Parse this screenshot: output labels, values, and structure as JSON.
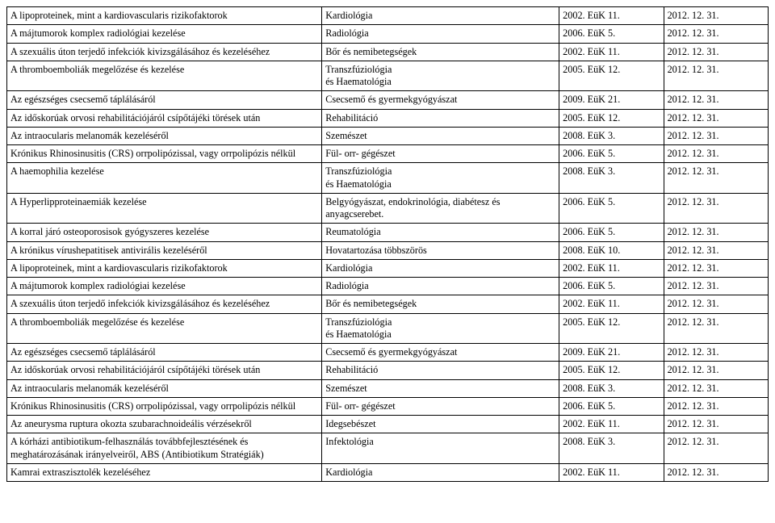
{
  "table": {
    "rows": [
      {
        "c1": "A lipoproteinek, mint a kardiovascularis rizikofaktorok",
        "c2": "Kardiológia",
        "c3": "2002. EüK 11.",
        "c4": "2012. 12. 31."
      },
      {
        "c1": "A májtumorok komplex radiológiai kezelése",
        "c2": "Radiológia",
        "c3": "2006. EüK 5.",
        "c4": "2012. 12. 31."
      },
      {
        "c1": "A szexuális úton terjedő infekciók kivizsgálásához és kezeléséhez",
        "c2": "Bőr és nemibetegségek",
        "c3": "2002. EüK 11.",
        "c4": "2012. 12. 31."
      },
      {
        "c1": "A thromboemboliák megelőzése és kezelése",
        "c2": "Transzfúziológia\nés Haematológia",
        "c3": "2005. EüK 12.",
        "c4": "2012. 12. 31."
      },
      {
        "c1": "Az egészséges csecsemő táplálásáról",
        "c2": "Csecsemő és gyermekgyógyászat",
        "c3": "2009. EüK 21.",
        "c4": "2012. 12. 31."
      },
      {
        "c1": "Az időskorúak orvosi rehabilitációjáról csípőtájéki törések után",
        "c2": "Rehabilitáció",
        "c3": "2005. EüK 12.",
        "c4": "2012. 12. 31."
      },
      {
        "c1": "Az intraocularis melanomák kezeléséről",
        "c2": "Szemészet",
        "c3": "2008. EüK 3.",
        "c4": "2012. 12. 31."
      },
      {
        "c1": "Krónikus Rhinosinusitis (CRS) orrpolipózissal, vagy orrpolipózis nélkül",
        "c2": "Fül- orr- gégészet",
        "c3": "2006. EüK 5.",
        "c4": "2012. 12. 31."
      },
      {
        "c1": "A haemophilia kezelése",
        "c2": "Transzfúziológia\nés Haematológia",
        "c3": "2008. EüK 3.",
        "c4": "2012. 12. 31."
      },
      {
        "c1": "A Hyperlipproteinaemiák kezelése",
        "c2": "Belgyógyászat, endokrinológia, diabétesz és anyagcserebet.",
        "c3": "2006. EüK 5.",
        "c4": "2012. 12. 31."
      },
      {
        "c1": "A korral járó osteoporosisok gyógyszeres kezelése",
        "c2": "Reumatológia",
        "c3": "2006. EüK 5.",
        "c4": "2012. 12. 31."
      },
      {
        "c1": "A krónikus vírushepatitisek antivirális kezeléséről",
        "c2": "Hovatartozása többszörös",
        "c3": "2008. EüK 10.",
        "c4": "2012. 12. 31."
      },
      {
        "c1": "A lipoproteinek, mint a kardiovascularis rizikofaktorok",
        "c2": "Kardiológia",
        "c3": "2002. EüK 11.",
        "c4": "2012. 12. 31."
      },
      {
        "c1": "A májtumorok komplex radiológiai kezelése",
        "c2": "Radiológia",
        "c3": "2006. EüK 5.",
        "c4": "2012. 12. 31."
      },
      {
        "c1": "A szexuális úton terjedő infekciók kivizsgálásához és kezeléséhez",
        "c2": "Bőr és nemibetegségek",
        "c3": "2002. EüK 11.",
        "c4": "2012. 12. 31."
      },
      {
        "c1": "A thromboemboliák megelőzése és kezelése",
        "c2": "Transzfúziológia\nés Haematológia",
        "c3": "2005. EüK 12.",
        "c4": "2012. 12. 31."
      },
      {
        "c1": "Az egészséges csecsemő táplálásáról",
        "c2": "Csecsemő és gyermekgyógyászat",
        "c3": "2009. EüK 21.",
        "c4": "2012. 12. 31."
      },
      {
        "c1": "Az időskorúak orvosi rehabilitációjáról csípőtájéki törések után",
        "c2": "Rehabilitáció",
        "c3": "2005. EüK 12.",
        "c4": "2012. 12. 31."
      },
      {
        "c1": "Az intraocularis melanomák kezeléséről",
        "c2": "Szemészet",
        "c3": "2008. EüK 3.",
        "c4": "2012. 12. 31."
      },
      {
        "c1": "Krónikus Rhinosinusitis (CRS) orrpolipózissal, vagy orrpolipózis nélkül",
        "c2": "Fül- orr- gégészet",
        "c3": "2006. EüK 5.",
        "c4": "2012. 12. 31."
      },
      {
        "c1": "Az aneurysma ruptura okozta szubarachnoideális vérzésekről",
        "c2": "Idegsebészet",
        "c3": "2002. EüK 11.",
        "c4": "2012. 12. 31."
      },
      {
        "c1": "A kórházi antibiotikum-felhasználás továbbfejlesztésének és meghatározásának irányelveiről, ABS (Antibiotikum Stratégiák)",
        "c2": "Infektológia",
        "c3": "2008. EüK 3.",
        "c4": "2012. 12. 31."
      },
      {
        "c1": "Kamrai extraszisztolék kezeléséhez",
        "c2": "Kardiológia",
        "c3": "2002. EüK 11.",
        "c4": "2012. 12. 31."
      }
    ]
  }
}
